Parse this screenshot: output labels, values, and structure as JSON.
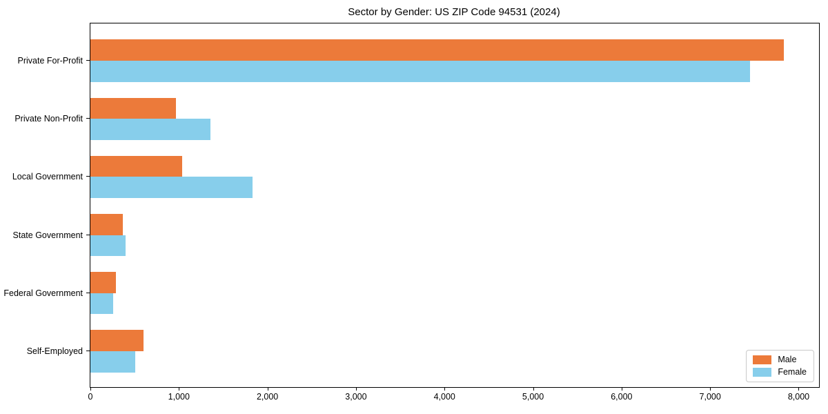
{
  "chart_data": {
    "type": "bar",
    "orientation": "horizontal",
    "title": "Sector by Gender: US ZIP Code 94531 (2024)",
    "xlabel": "",
    "ylabel": "",
    "categories": [
      "Private For-Profit",
      "Private Non-Profit",
      "Local Government",
      "State Government",
      "Federal Government",
      "Self-Employed"
    ],
    "series": [
      {
        "name": "Male",
        "color": "#ec7a3a",
        "values": [
          7830,
          970,
          1035,
          370,
          290,
          600
        ]
      },
      {
        "name": "Female",
        "color": "#87ceeb",
        "values": [
          7450,
          1355,
          1830,
          400,
          255,
          505
        ]
      }
    ],
    "xlim": [
      0,
      8230
    ],
    "x_ticks": [
      0,
      1000,
      2000,
      3000,
      4000,
      5000,
      6000,
      7000,
      8000
    ],
    "x_tick_labels": [
      "0",
      "1,000",
      "2,000",
      "3,000",
      "4,000",
      "5,000",
      "6,000",
      "7,000",
      "8,000"
    ],
    "grid": false,
    "legend": {
      "position": "lower right"
    }
  },
  "colors": {
    "male": "#ec7a3a",
    "female": "#87ceeb",
    "spine": "#000000",
    "legend_border": "#c9c9c9",
    "background": "#ffffff"
  }
}
